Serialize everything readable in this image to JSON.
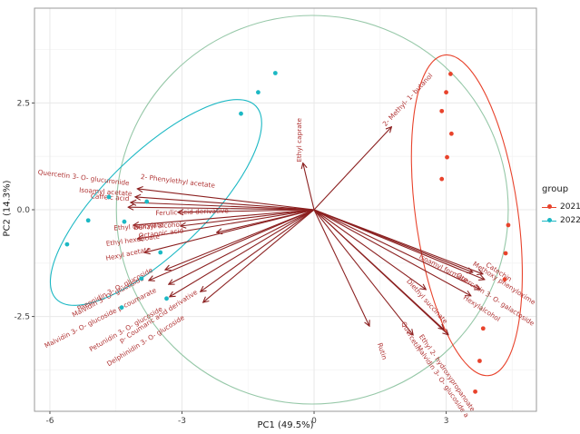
{
  "legend": {
    "title": "group",
    "items": [
      {
        "label": "2021",
        "color": "#E8432C"
      },
      {
        "label": "2022",
        "color": "#1CB8C4"
      }
    ]
  },
  "chart_data": {
    "type": "scatter",
    "subtype": "pca-biplot",
    "title": "",
    "xlabel": "PC1 (49.5%)",
    "ylabel": "PC2 (14.3%)",
    "xlim": [
      -6.35,
      5.05
    ],
    "ylim": [
      -4.72,
      4.72
    ],
    "x_ticks": [
      -6,
      -3,
      0,
      3
    ],
    "x_tick_labels": [
      "-6",
      "-3",
      "0",
      "3"
    ],
    "y_ticks": [
      2.5,
      0.0,
      -2.5
    ],
    "y_tick_labels": [
      "2.5",
      "0.0",
      "-2.5"
    ],
    "x_minor_ticks": [
      -4.5,
      -1.5,
      1.5,
      4.5
    ],
    "y_minor_ticks": [
      -3.75,
      -1.25,
      1.25,
      3.75
    ],
    "grid": true,
    "legend_position": "right",
    "colors": {
      "group_2021": "#E8432C",
      "group_2022": "#1CB8C4",
      "overall_ellipse": "#96C8A8",
      "arrow": "#8B2020",
      "arrow_label": "#B03434",
      "grid_major": "#E8E8E8",
      "grid_minor": "#F4F4F4",
      "panel_border": "#9A9A9A"
    },
    "groups": [
      {
        "name": "2021",
        "color": "#E8432C",
        "points": [
          [
            3.1,
            3.18
          ],
          [
            3.0,
            2.75
          ],
          [
            2.9,
            2.31
          ],
          [
            3.12,
            1.78
          ],
          [
            3.02,
            1.23
          ],
          [
            2.9,
            0.72
          ],
          [
            4.41,
            -0.36
          ],
          [
            4.35,
            -1.02
          ],
          [
            4.33,
            -1.63
          ],
          [
            3.84,
            -2.78
          ],
          [
            3.76,
            -3.54
          ],
          [
            3.66,
            -4.26
          ]
        ]
      },
      {
        "name": "2022",
        "color": "#1CB8C4",
        "points": [
          [
            -0.88,
            3.2
          ],
          [
            -1.27,
            2.75
          ],
          [
            -1.66,
            2.25
          ],
          [
            -4.66,
            0.3
          ],
          [
            -3.8,
            0.19
          ],
          [
            -5.13,
            -0.25
          ],
          [
            -4.31,
            -0.28
          ],
          [
            -5.61,
            -0.81
          ],
          [
            -3.49,
            -1.0
          ],
          [
            -3.35,
            -2.08
          ],
          [
            -3.92,
            -1.61
          ],
          [
            -4.37,
            -2.29
          ]
        ]
      }
    ],
    "ellipses": [
      {
        "name": "overall",
        "cx": -0.04,
        "cy": 0.0,
        "rx": 4.45,
        "ry": 4.55,
        "rotation": 0,
        "color": "#96C8A8"
      },
      {
        "name": "2022",
        "cx": -3.59,
        "cy": 0.17,
        "rx": 3.2,
        "ry": 1.15,
        "rotation": -44,
        "color": "#1CB8C4"
      },
      {
        "name": "2021",
        "cx": 3.47,
        "cy": -0.13,
        "rx": 3.73,
        "ry": 1.18,
        "rotation": 82,
        "color": "#E8432C"
      }
    ],
    "loadings": [
      {
        "label": "Quercetin 3- O- glucuronide",
        "x": -4.05,
        "y": 0.3,
        "lx": -5.24,
        "ly": 0.7,
        "lrot": 7
      },
      {
        "label": "2- Phenylethyl acetate",
        "x": -4.0,
        "y": 0.49,
        "lx": -3.1,
        "ly": 0.62,
        "lrot": 7
      },
      {
        "label": "Isoamyl acetate",
        "x": -4.15,
        "y": 0.17,
        "lx": -4.74,
        "ly": 0.37,
        "lrot": 4
      },
      {
        "label": "Caffeic acid",
        "x": -4.21,
        "y": 0.06,
        "lx": -4.64,
        "ly": 0.24,
        "lrot": 4
      },
      {
        "label": "Ferulic acid derivative",
        "x": -3.08,
        "y": -0.06,
        "lx": -2.77,
        "ly": -0.1,
        "lrot": -2
      },
      {
        "label": "Ethyl caprylate",
        "x": -4.09,
        "y": -0.36,
        "lx": -3.98,
        "ly": -0.44,
        "lrot": -4
      },
      {
        "label": "Benzyl alcohol",
        "x": -3.02,
        "y": -0.38,
        "lx": -3.55,
        "ly": -0.43,
        "lrot": -4
      },
      {
        "label": "Octanoic acid",
        "x": -2.2,
        "y": -0.53,
        "lx": -3.47,
        "ly": -0.6,
        "lrot": -7
      },
      {
        "label": "Ethyl hexanoate",
        "x": -4.0,
        "y": -0.68,
        "lx": -4.11,
        "ly": -0.76,
        "lrot": -8
      },
      {
        "label": "Hexyl acetate",
        "x": -3.84,
        "y": -1.0,
        "lx": -4.21,
        "ly": -1.08,
        "lrot": -12
      },
      {
        "label": "Paeonidin 3- O- glucoside",
        "x": -3.37,
        "y": -1.4,
        "lx": -4.5,
        "ly": -1.91,
        "lrot": -28
      },
      {
        "label": "Malvidin 3- O- glucoside",
        "x": -3.74,
        "y": -1.65,
        "lx": -4.66,
        "ly": -2.08,
        "lrot": -28
      },
      {
        "label": "Malvidin 3- O- glucoside p-coumarate",
        "x": -3.29,
        "y": -1.74,
        "lx": -4.83,
        "ly": -2.58,
        "lrot": -27
      },
      {
        "label": "Petunidin 3- O- glucoside",
        "x": -3.27,
        "y": -2.03,
        "lx": -4.25,
        "ly": -2.84,
        "lrot": -30
      },
      {
        "label": "p- Coumaric acid derivative",
        "x": -2.57,
        "y": -1.91,
        "lx": -3.51,
        "ly": -2.54,
        "lrot": -33
      },
      {
        "label": "Delphinidin 3- O- glucoside",
        "x": -2.51,
        "y": -2.16,
        "lx": -3.8,
        "ly": -3.11,
        "lrot": -32
      },
      {
        "label": "Ethyl caprate",
        "x": -0.25,
        "y": 1.08,
        "lx": -0.29,
        "ly": 1.63,
        "lrot": -90
      },
      {
        "label": "2- Methyl- 1- butanol",
        "x": 1.75,
        "y": 1.93,
        "lx": 2.16,
        "ly": 2.54,
        "lrot": -47
      },
      {
        "label": "Isoamyl formate",
        "x": 3.59,
        "y": -1.46,
        "lx": 2.92,
        "ly": -1.42,
        "lrot": 27
      },
      {
        "label": "Catechin",
        "x": 3.82,
        "y": -1.5,
        "lx": 4.17,
        "ly": -1.5,
        "lrot": 33
      },
      {
        "label": "Methoxy phenyloxime",
        "x": 3.86,
        "y": -1.63,
        "lx": 4.29,
        "ly": -1.76,
        "lrot": 33
      },
      {
        "label": "Quercetin 3- O- galactoside",
        "x": 3.76,
        "y": -1.86,
        "lx": 4.09,
        "ly": -2.14,
        "lrot": 33
      },
      {
        "label": "Hexylalcohol",
        "x": 3.55,
        "y": -2.01,
        "lx": 3.78,
        "ly": -2.35,
        "lrot": 33
      },
      {
        "label": "Diethyl succinate",
        "x": 2.53,
        "y": -1.86,
        "lx": 2.53,
        "ly": -2.18,
        "lrot": 48
      },
      {
        "label": "Quercetin",
        "x": 2.24,
        "y": -2.92,
        "lx": 2.16,
        "ly": -2.99,
        "lrot": 60
      },
      {
        "label": "Rutin",
        "x": 1.25,
        "y": -2.71,
        "lx": 1.5,
        "ly": -3.33,
        "lrot": 72
      },
      {
        "label": "Ethyl 2- hydroxypropanoate",
        "x": 2.94,
        "y": -2.8,
        "lx": 2.98,
        "ly": -3.85,
        "lrot": 55
      },
      {
        "label": "Malvidin 3- O- glucoside a",
        "x": 3.04,
        "y": -2.92,
        "lx": 2.88,
        "ly": -4.05,
        "lrot": 55
      }
    ]
  }
}
